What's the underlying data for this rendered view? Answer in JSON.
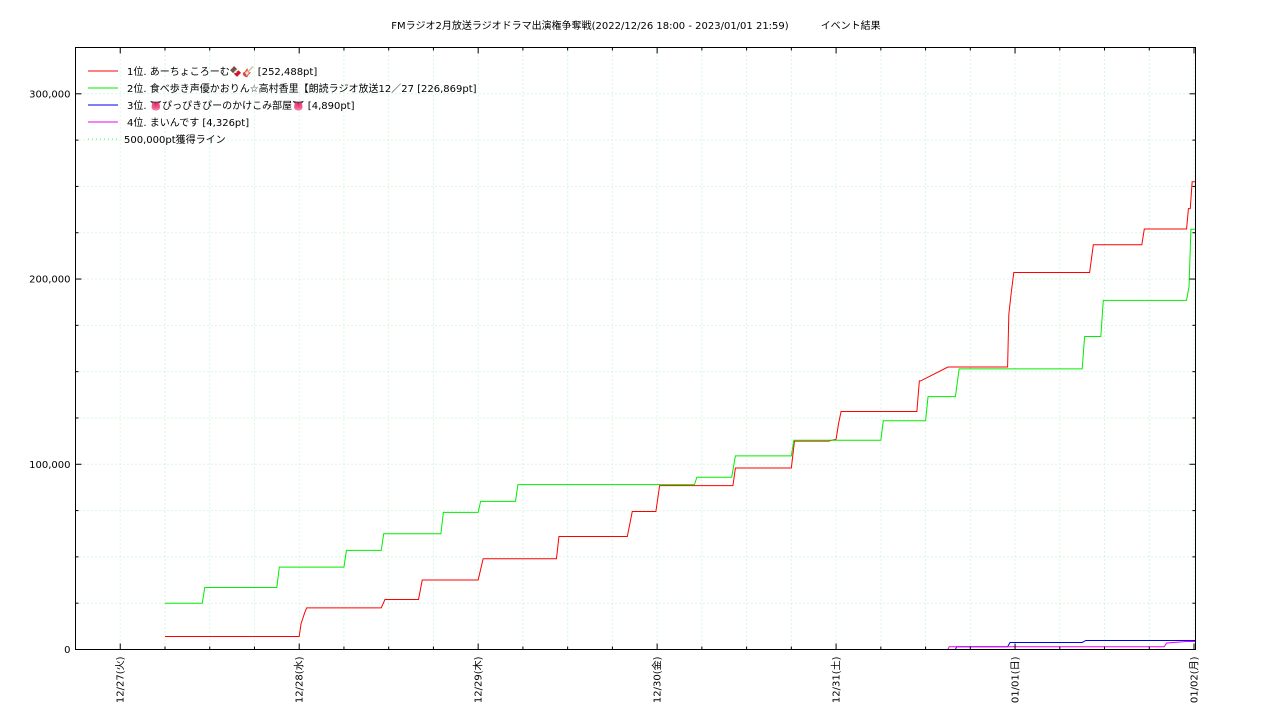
{
  "chart_data": {
    "type": "line",
    "title": "FMラジオ2月放送ラジオドラマ出演権争奪戦(2022/12/26 18:00 - 2023/01/01 21:59)",
    "subtitle": "イベント結果",
    "xlabel": "",
    "ylabel": "",
    "x_axis_type": "date",
    "xlim": [
      "2022-12-26T18:00",
      "2023-01-02T00:12"
    ],
    "ylim": [
      0,
      325000
    ],
    "x_ticks": [
      "2022-12-27T00:00",
      "2022-12-28T00:00",
      "2022-12-29T00:00",
      "2022-12-30T00:00",
      "2022-12-31T00:00",
      "2023-01-01T00:00",
      "2023-01-02T00:00"
    ],
    "x_tick_labels": [
      "12/27(火)",
      "12/28(水)",
      "12/29(木)",
      "12/30(金)",
      "12/31(土)",
      "01/01(日)",
      "01/02(月)"
    ],
    "y_ticks": [
      0,
      100000,
      200000,
      300000
    ],
    "y_tick_labels": [
      "0",
      "100,000",
      "200,000",
      "300,000"
    ],
    "grid": true,
    "legend_position": "top-left",
    "reference_line": {
      "name": "500,000pt獲得ライン",
      "value": 500000,
      "color": "#33ff66"
    },
    "series": [
      {
        "name": "1位. あーちょころーむ🍫🎸 [252,488pt]",
        "color": "#ff0000",
        "x": [
          "2022-12-27T06:00",
          "2022-12-28T00:00",
          "2022-12-28T00:15",
          "2022-12-28T00:45",
          "2022-12-28T01:00",
          "2022-12-28T11:00",
          "2022-12-28T11:30",
          "2022-12-28T16:00",
          "2022-12-28T16:30",
          "2022-12-29T00:00",
          "2022-12-29T00:40",
          "2022-12-29T10:30",
          "2022-12-29T10:50",
          "2022-12-29T20:00",
          "2022-12-29T20:40",
          "2022-12-29T23:50",
          "2022-12-30T00:20",
          "2022-12-30T10:00",
          "2022-12-30T10:10",
          "2022-12-30T10:30",
          "2022-12-30T18:00",
          "2022-12-30T18:25",
          "2022-12-30T23:00",
          "2022-12-31T00:00",
          "2022-12-31T00:20",
          "2022-12-31T00:40",
          "2022-12-31T01:00",
          "2022-12-31T10:50",
          "2022-12-31T11:10",
          "2022-12-31T11:20",
          "2022-12-31T15:00",
          "2022-12-31T15:20",
          "2022-12-31T23:00",
          "2022-12-31T23:10",
          "2022-12-31T23:30",
          "2022-12-31T23:50",
          "2023-01-01T10:00",
          "2023-01-01T10:30",
          "2023-01-01T17:00",
          "2023-01-01T17:20",
          "2023-01-01T23:00",
          "2023-01-01T23:15",
          "2023-01-01T23:30",
          "2023-01-01T23:45",
          "2023-01-02T00:12"
        ],
        "values": [
          7000,
          7000,
          14000,
          20000,
          22500,
          22500,
          27000,
          27000,
          37500,
          37500,
          49000,
          49000,
          61000,
          61000,
          74500,
          74500,
          88500,
          88500,
          88500,
          98000,
          98000,
          112500,
          112500,
          113500,
          122000,
          128500,
          128500,
          128500,
          145000,
          145000,
          152500,
          152500,
          152500,
          181000,
          193000,
          203500,
          203500,
          218500,
          218500,
          227000,
          227000,
          238000,
          238000,
          252488,
          252488
        ]
      },
      {
        "name": "2位. 食べ歩き声優かおりん☆高村香里【朗読ラジオ放送12／27 [226,869pt]",
        "color": "#00ee00",
        "x": [
          "2022-12-27T06:00",
          "2022-12-27T11:00",
          "2022-12-27T11:20",
          "2022-12-27T21:00",
          "2022-12-27T21:20",
          "2022-12-28T06:00",
          "2022-12-28T06:20",
          "2022-12-28T11:00",
          "2022-12-28T11:20",
          "2022-12-28T19:00",
          "2022-12-28T19:20",
          "2022-12-29T00:00",
          "2022-12-29T00:20",
          "2022-12-29T05:00",
          "2022-12-29T05:20",
          "2022-12-29T09:00",
          "2022-12-29T11:00",
          "2022-12-30T00:00",
          "2022-12-30T05:00",
          "2022-12-30T05:20",
          "2022-12-30T10:00",
          "2022-12-30T10:30",
          "2022-12-30T18:00",
          "2022-12-30T18:20",
          "2022-12-31T06:00",
          "2022-12-31T06:20",
          "2022-12-31T12:00",
          "2022-12-31T12:20",
          "2022-12-31T16:00",
          "2022-12-31T16:30",
          "2023-01-01T09:00",
          "2023-01-01T09:20",
          "2023-01-01T11:30",
          "2023-01-01T11:50",
          "2023-01-01T23:00",
          "2023-01-01T23:20",
          "2023-01-01T23:35",
          "2023-01-02T00:12"
        ],
        "values": [
          25000,
          25000,
          33500,
          33500,
          44500,
          44500,
          53500,
          53500,
          62500,
          62500,
          74000,
          74000,
          80000,
          80000,
          89000,
          89000,
          89000,
          89000,
          89000,
          93000,
          93000,
          104500,
          104500,
          113000,
          113000,
          123500,
          123500,
          136500,
          136500,
          151500,
          151500,
          169000,
          169000,
          188500,
          188500,
          196000,
          226869,
          226869
        ]
      },
      {
        "name": "3位. 👅ぴっぴきぴーのかけこみ部屋👅 [4,890pt]",
        "color": "#0000ee",
        "x": [
          "2022-12-28T00:00",
          "2022-12-31T16:00",
          "2022-12-31T16:10",
          "2022-12-31T23:00",
          "2022-12-31T23:20",
          "2023-01-01T09:00",
          "2023-01-01T09:30",
          "2023-01-02T00:12"
        ],
        "values": [
          0,
          0,
          1500,
          1500,
          3800,
          3800,
          4890,
          4890
        ]
      },
      {
        "name": "4位. まいんです [4,326pt]",
        "color": "#ee00ee",
        "x": [
          "2022-12-28T00:00",
          "2022-12-31T15:00",
          "2022-12-31T15:10",
          "2023-01-01T20:00",
          "2023-01-01T20:20",
          "2023-01-01T23:00",
          "2023-01-02T00:12"
        ],
        "values": [
          0,
          0,
          1500,
          1500,
          3500,
          4326,
          4326
        ]
      }
    ]
  }
}
